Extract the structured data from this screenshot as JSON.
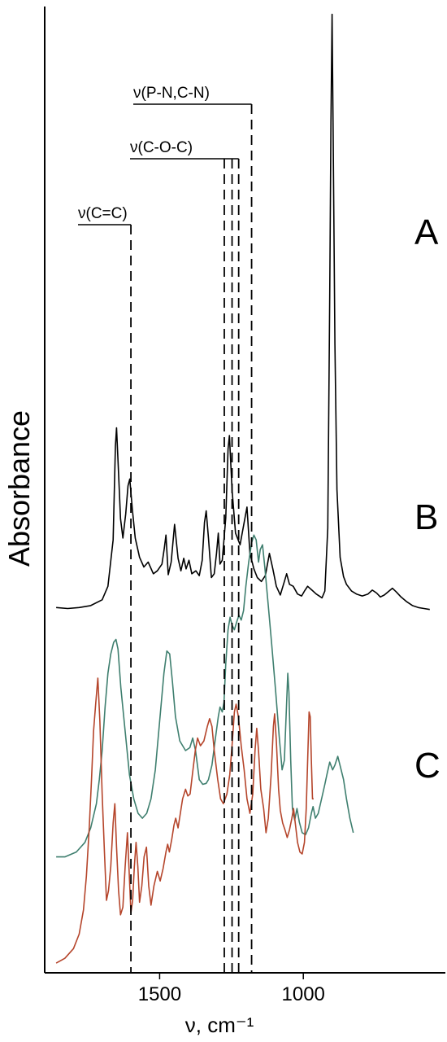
{
  "chart_data": {
    "type": "line",
    "title": "",
    "xlabel": "ν, cm⁻¹",
    "ylabel": "Absorbance",
    "x_reversed": true,
    "xlim": [
      1900,
      500
    ],
    "ylim": [
      0,
      100
    ],
    "xticks": [
      1500,
      1000
    ],
    "xtick_labels": [
      "1500",
      "1000"
    ],
    "grid": false,
    "legend": "none",
    "colors": {
      "A": "#000000",
      "B": "#3f7f6f",
      "C": "#b5452b",
      "dash": "#000000"
    },
    "series": [
      {
        "name": "A",
        "points": [
          [
            1860,
            37.8
          ],
          [
            1820,
            37.7
          ],
          [
            1780,
            37.8
          ],
          [
            1740,
            38.0
          ],
          [
            1700,
            38.6
          ],
          [
            1680,
            40.0
          ],
          [
            1662,
            44.8
          ],
          [
            1654,
            54.5
          ],
          [
            1650,
            56.4
          ],
          [
            1645,
            53.0
          ],
          [
            1636,
            47.0
          ],
          [
            1628,
            45.0
          ],
          [
            1618,
            47.5
          ],
          [
            1610,
            50.4
          ],
          [
            1604,
            51.1
          ],
          [
            1595,
            48.0
          ],
          [
            1585,
            45.0
          ],
          [
            1570,
            43.0
          ],
          [
            1555,
            42.0
          ],
          [
            1540,
            42.5
          ],
          [
            1522,
            41.3
          ],
          [
            1508,
            41.6
          ],
          [
            1492,
            42.3
          ],
          [
            1484,
            43.9
          ],
          [
            1478,
            45.3
          ],
          [
            1470,
            41.2
          ],
          [
            1460,
            42.5
          ],
          [
            1448,
            46.4
          ],
          [
            1436,
            42.9
          ],
          [
            1426,
            41.6
          ],
          [
            1416,
            42.9
          ],
          [
            1408,
            41.8
          ],
          [
            1398,
            42.7
          ],
          [
            1388,
            41.3
          ],
          [
            1374,
            41.6
          ],
          [
            1362,
            41.1
          ],
          [
            1352,
            42.7
          ],
          [
            1344,
            46.6
          ],
          [
            1338,
            47.8
          ],
          [
            1330,
            45.0
          ],
          [
            1320,
            40.9
          ],
          [
            1310,
            41.3
          ],
          [
            1302,
            43.4
          ],
          [
            1296,
            45.5
          ],
          [
            1290,
            42.3
          ],
          [
            1282,
            42.7
          ],
          [
            1270,
            47.1
          ],
          [
            1262,
            54.2
          ],
          [
            1257,
            55.6
          ],
          [
            1248,
            50.0
          ],
          [
            1236,
            45.5
          ],
          [
            1220,
            44.3
          ],
          [
            1206,
            46.6
          ],
          [
            1196,
            48.2
          ],
          [
            1186,
            43.4
          ],
          [
            1172,
            41.8
          ],
          [
            1160,
            40.9
          ],
          [
            1146,
            40.5
          ],
          [
            1132,
            41.1
          ],
          [
            1118,
            43.4
          ],
          [
            1106,
            41.8
          ],
          [
            1094,
            40.0
          ],
          [
            1080,
            39.1
          ],
          [
            1066,
            40.5
          ],
          [
            1058,
            41.3
          ],
          [
            1048,
            40.2
          ],
          [
            1035,
            40.0
          ],
          [
            1020,
            39.2
          ],
          [
            1006,
            39.0
          ],
          [
            996,
            39.5
          ],
          [
            985,
            40.0
          ],
          [
            970,
            39.6
          ],
          [
            955,
            39.2
          ],
          [
            945,
            39.0
          ],
          [
            935,
            38.8
          ],
          [
            925,
            39.5
          ],
          [
            915,
            46.0
          ],
          [
            908,
            70.0
          ],
          [
            904,
            88.0
          ],
          [
            900,
            99.2
          ],
          [
            896,
            86.0
          ],
          [
            890,
            65.0
          ],
          [
            883,
            50.0
          ],
          [
            872,
            43.0
          ],
          [
            860,
            41.0
          ],
          [
            850,
            40.2
          ],
          [
            832,
            39.5
          ],
          [
            815,
            39.2
          ],
          [
            795,
            39.0
          ],
          [
            775,
            39.2
          ],
          [
            760,
            39.6
          ],
          [
            745,
            39.3
          ],
          [
            732,
            38.9
          ],
          [
            718,
            39.1
          ],
          [
            702,
            39.5
          ],
          [
            690,
            39.8
          ],
          [
            676,
            39.4
          ],
          [
            660,
            38.9
          ],
          [
            640,
            38.4
          ],
          [
            620,
            38.0
          ],
          [
            600,
            37.8
          ],
          [
            580,
            37.7
          ],
          [
            560,
            37.6
          ]
        ]
      },
      {
        "name": "B",
        "points": [
          [
            1860,
            12.0
          ],
          [
            1830,
            12.0
          ],
          [
            1790,
            12.5
          ],
          [
            1760,
            13.5
          ],
          [
            1740,
            15.0
          ],
          [
            1720,
            17.5
          ],
          [
            1710,
            20.0
          ],
          [
            1700,
            23.0
          ],
          [
            1690,
            27.5
          ],
          [
            1680,
            31.0
          ],
          [
            1670,
            33.0
          ],
          [
            1660,
            34.2
          ],
          [
            1652,
            34.5
          ],
          [
            1645,
            33.5
          ],
          [
            1635,
            29.5
          ],
          [
            1620,
            25.0
          ],
          [
            1605,
            20.5
          ],
          [
            1590,
            18.0
          ],
          [
            1575,
            16.5
          ],
          [
            1560,
            16.0
          ],
          [
            1545,
            16.5
          ],
          [
            1530,
            18.0
          ],
          [
            1515,
            21.0
          ],
          [
            1500,
            26.0
          ],
          [
            1485,
            31.0
          ],
          [
            1475,
            33.3
          ],
          [
            1465,
            33.0
          ],
          [
            1455,
            30.0
          ],
          [
            1445,
            26.5
          ],
          [
            1430,
            24.0
          ],
          [
            1410,
            23.0
          ],
          [
            1395,
            23.3
          ],
          [
            1385,
            24.3
          ],
          [
            1375,
            23.0
          ],
          [
            1362,
            20.0
          ],
          [
            1350,
            19.5
          ],
          [
            1338,
            19.6
          ],
          [
            1330,
            20.0
          ],
          [
            1318,
            21.5
          ],
          [
            1308,
            23.8
          ],
          [
            1296,
            26.5
          ],
          [
            1290,
            27.5
          ],
          [
            1282,
            27.0
          ],
          [
            1276,
            28.0
          ],
          [
            1270,
            32.0
          ],
          [
            1262,
            35.5
          ],
          [
            1255,
            36.8
          ],
          [
            1248,
            36.0
          ],
          [
            1240,
            35.5
          ],
          [
            1232,
            36.3
          ],
          [
            1224,
            37.0
          ],
          [
            1216,
            36.5
          ],
          [
            1208,
            37.5
          ],
          [
            1200,
            40.0
          ],
          [
            1190,
            42.5
          ],
          [
            1180,
            44.5
          ],
          [
            1172,
            45.3
          ],
          [
            1164,
            44.8
          ],
          [
            1156,
            42.5
          ],
          [
            1150,
            43.8
          ],
          [
            1142,
            44.3
          ],
          [
            1134,
            42.0
          ],
          [
            1122,
            38.0
          ],
          [
            1110,
            34.0
          ],
          [
            1096,
            29.0
          ],
          [
            1084,
            24.5
          ],
          [
            1074,
            21.0
          ],
          [
            1066,
            22.0
          ],
          [
            1058,
            28.0
          ],
          [
            1054,
            31.0
          ],
          [
            1050,
            29.0
          ],
          [
            1044,
            22.0
          ],
          [
            1038,
            17.0
          ],
          [
            1030,
            15.8
          ],
          [
            1022,
            17.0
          ],
          [
            1014,
            15.6
          ],
          [
            1004,
            14.5
          ],
          [
            992,
            14.3
          ],
          [
            982,
            15.0
          ],
          [
            972,
            16.5
          ],
          [
            966,
            17.2
          ],
          [
            958,
            16.0
          ],
          [
            948,
            16.5
          ],
          [
            935,
            18.2
          ],
          [
            925,
            19.5
          ],
          [
            918,
            20.5
          ],
          [
            908,
            21.8
          ],
          [
            898,
            21.0
          ],
          [
            890,
            21.5
          ],
          [
            880,
            22.4
          ],
          [
            870,
            21.2
          ],
          [
            860,
            20.0
          ],
          [
            850,
            18.0
          ],
          [
            838,
            16.0
          ],
          [
            826,
            14.5
          ]
        ]
      },
      {
        "name": "C",
        "points": [
          [
            1860,
            1.0
          ],
          [
            1830,
            1.5
          ],
          [
            1800,
            2.5
          ],
          [
            1780,
            4.0
          ],
          [
            1765,
            6.5
          ],
          [
            1755,
            10.0
          ],
          [
            1745,
            15.0
          ],
          [
            1737,
            20.0
          ],
          [
            1730,
            25.0
          ],
          [
            1722,
            28.0
          ],
          [
            1715,
            30.5
          ],
          [
            1708,
            26.0
          ],
          [
            1700,
            18.5
          ],
          [
            1692,
            12.5
          ],
          [
            1685,
            7.5
          ],
          [
            1678,
            8.5
          ],
          [
            1670,
            11.0
          ],
          [
            1662,
            15.5
          ],
          [
            1656,
            17.5
          ],
          [
            1650,
            13.0
          ],
          [
            1643,
            8.5
          ],
          [
            1636,
            6.0
          ],
          [
            1628,
            6.8
          ],
          [
            1620,
            11.0
          ],
          [
            1612,
            14.5
          ],
          [
            1606,
            10.5
          ],
          [
            1600,
            6.2
          ],
          [
            1594,
            7.5
          ],
          [
            1588,
            11.0
          ],
          [
            1582,
            13.5
          ],
          [
            1576,
            11.0
          ],
          [
            1570,
            7.3
          ],
          [
            1562,
            9.0
          ],
          [
            1554,
            12.0
          ],
          [
            1546,
            13.0
          ],
          [
            1538,
            9.0
          ],
          [
            1530,
            7.0
          ],
          [
            1520,
            9.0
          ],
          [
            1508,
            10.5
          ],
          [
            1498,
            9.5
          ],
          [
            1488,
            10.8
          ],
          [
            1478,
            12.5
          ],
          [
            1472,
            13.3
          ],
          [
            1466,
            12.5
          ],
          [
            1458,
            13.8
          ],
          [
            1450,
            15.3
          ],
          [
            1444,
            16.0
          ],
          [
            1436,
            15.0
          ],
          [
            1428,
            16.5
          ],
          [
            1420,
            18.0
          ],
          [
            1410,
            19.0
          ],
          [
            1402,
            18.3
          ],
          [
            1394,
            18.5
          ],
          [
            1386,
            20.5
          ],
          [
            1376,
            23.0
          ],
          [
            1368,
            24.3
          ],
          [
            1358,
            23.5
          ],
          [
            1346,
            24.0
          ],
          [
            1334,
            25.5
          ],
          [
            1326,
            26.3
          ],
          [
            1318,
            25.5
          ],
          [
            1310,
            23.0
          ],
          [
            1298,
            20.0
          ],
          [
            1288,
            18.0
          ],
          [
            1278,
            17.5
          ],
          [
            1266,
            18.5
          ],
          [
            1256,
            20.5
          ],
          [
            1248,
            23.5
          ],
          [
            1240,
            27.0
          ],
          [
            1234,
            27.8
          ],
          [
            1226,
            26.5
          ],
          [
            1216,
            23.5
          ],
          [
            1206,
            21.0
          ],
          [
            1196,
            18.0
          ],
          [
            1186,
            16.5
          ],
          [
            1176,
            18.5
          ],
          [
            1168,
            23.0
          ],
          [
            1162,
            25.3
          ],
          [
            1156,
            23.0
          ],
          [
            1148,
            19.0
          ],
          [
            1138,
            17.0
          ],
          [
            1130,
            14.5
          ],
          [
            1122,
            16.0
          ],
          [
            1112,
            20.5
          ],
          [
            1104,
            25.5
          ],
          [
            1100,
            26.8
          ],
          [
            1094,
            24.0
          ],
          [
            1086,
            19.0
          ],
          [
            1080,
            16.8
          ],
          [
            1072,
            15.5
          ],
          [
            1064,
            14.8
          ],
          [
            1056,
            14.0
          ],
          [
            1048,
            14.8
          ],
          [
            1040,
            16.0
          ],
          [
            1034,
            17.0
          ],
          [
            1028,
            15.5
          ],
          [
            1020,
            13.5
          ],
          [
            1012,
            12.5
          ],
          [
            1004,
            12.3
          ],
          [
            996,
            13.5
          ],
          [
            990,
            17.0
          ],
          [
            984,
            23.0
          ],
          [
            980,
            27.0
          ],
          [
            976,
            26.5
          ],
          [
            972,
            22.0
          ],
          [
            968,
            18.0
          ],
          [
            964,
            18.0
          ]
        ]
      }
    ],
    "trace_labels": [
      "A",
      "B",
      "C"
    ],
    "annotations": [
      {
        "text": "ν(C=C)",
        "x": [
          1600
        ]
      },
      {
        "text": "ν(C-O-C)",
        "x": [
          1275,
          1248,
          1225
        ]
      },
      {
        "text": "ν(P-N,C-N)",
        "x": [
          1180
        ]
      }
    ]
  }
}
